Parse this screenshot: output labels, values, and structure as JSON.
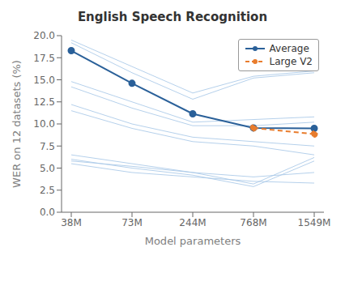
{
  "chart_data": {
    "type": "line",
    "title": "English Speech Recognition",
    "x_label": "Model parameters",
    "y_label": "WER on 12 datasets (%)",
    "categories": [
      "38M",
      "73M",
      "244M",
      "768M",
      "1549M"
    ],
    "series": [
      {
        "color": "#a8c8e8",
        "values": [
          19.5,
          16.5,
          13.5,
          15.4,
          16.0
        ]
      },
      {
        "color": "#a8c8e8",
        "values": [
          19.2,
          15.8,
          12.8,
          15.2,
          15.8
        ]
      },
      {
        "color": "#a8c8e8",
        "values": [
          14.8,
          12.5,
          10.2,
          10.5,
          10.8
        ]
      },
      {
        "color": "#a8c8e8",
        "values": [
          14.2,
          11.8,
          9.8,
          9.8,
          10.2
        ]
      },
      {
        "color": "#a8c8e8",
        "values": [
          12.2,
          10.0,
          8.5,
          8.0,
          7.5
        ]
      },
      {
        "color": "#a8c8e8",
        "values": [
          11.5,
          9.5,
          8.0,
          7.5,
          6.5
        ]
      },
      {
        "color": "#a8c8e8",
        "values": [
          6.5,
          5.5,
          4.5,
          3.2,
          6.2
        ]
      },
      {
        "color": "#a8c8e8",
        "values": [
          6.0,
          5.0,
          4.2,
          2.9,
          5.8
        ]
      },
      {
        "color": "#a8c8e8",
        "values": [
          5.8,
          5.2,
          4.5,
          4.0,
          4.5
        ]
      },
      {
        "color": "#a8c8e8",
        "values": [
          5.5,
          4.5,
          4.0,
          3.5,
          3.3
        ]
      },
      {
        "name": "Average",
        "color": "#2a6099",
        "marker": "circle",
        "line_style": "solid",
        "values": [
          18.3,
          14.6,
          11.15,
          9.55,
          9.5
        ]
      },
      {
        "name": "Large V2",
        "color": "#e87c2d",
        "marker": "circle",
        "line_style": "dashed",
        "values": [
          null,
          null,
          null,
          9.55,
          8.85
        ]
      }
    ],
    "ylim": [
      0,
      20
    ],
    "yticks": [
      {
        "value": 0,
        "label": "0.0"
      },
      2.5,
      {
        "value": 5,
        "label": "5.0"
      },
      7.5,
      {
        "value": 10,
        "label": "10.0"
      },
      12.5,
      {
        "value": 15,
        "label": "15.0"
      },
      17.5,
      {
        "value": 20,
        "label": "20.0"
      }
    ],
    "grid": false,
    "legend": "upper right"
  }
}
